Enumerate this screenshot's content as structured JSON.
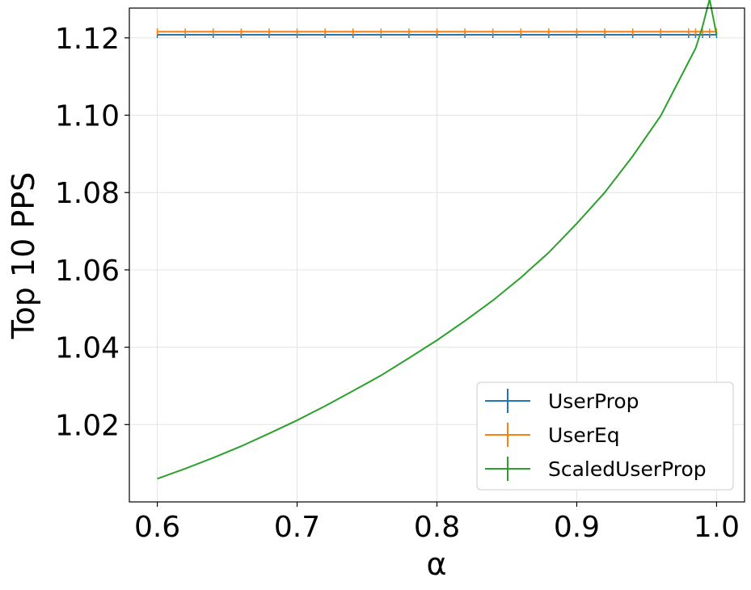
{
  "chart_data": {
    "type": "line",
    "title": "",
    "xlabel": "α",
    "ylabel": "Top 10 PPS",
    "xlim": [
      0.58,
      1.02
    ],
    "ylim": [
      1.0,
      1.1277
    ],
    "xticks": [
      0.6,
      0.7,
      0.8,
      0.9,
      1.0
    ],
    "xtick_labels": [
      "0.6",
      "0.7",
      "0.8",
      "0.9",
      "1.0"
    ],
    "yticks": [
      1.02,
      1.04,
      1.06,
      1.08,
      1.1,
      1.12
    ],
    "ytick_labels": [
      "1.02",
      "1.04",
      "1.06",
      "1.08",
      "1.10",
      "1.12"
    ],
    "grid": true,
    "legend_position": "bottom-right",
    "x": [
      0.6,
      0.62,
      0.64,
      0.66,
      0.68,
      0.7,
      0.72,
      0.74,
      0.76,
      0.78,
      0.8,
      0.82,
      0.84,
      0.86,
      0.88,
      0.9,
      0.92,
      0.94,
      0.96,
      0.98,
      0.985,
      0.99,
      0.995,
      1.0
    ],
    "series": [
      {
        "name": "UserProp",
        "color": "#1f77b4",
        "values": [
          1.1208,
          1.1208,
          1.1208,
          1.1208,
          1.1208,
          1.1208,
          1.1208,
          1.1208,
          1.1208,
          1.1208,
          1.1208,
          1.1208,
          1.1208,
          1.1208,
          1.1208,
          1.1208,
          1.1208,
          1.1208,
          1.1208,
          1.1208,
          1.1208,
          1.1208,
          1.1208,
          1.1208
        ]
      },
      {
        "name": "UserEq",
        "color": "#ff7f0e",
        "values": [
          1.1216,
          1.1216,
          1.1216,
          1.1216,
          1.1216,
          1.1216,
          1.1216,
          1.1216,
          1.1216,
          1.1216,
          1.1216,
          1.1216,
          1.1216,
          1.1216,
          1.1216,
          1.1216,
          1.1216,
          1.1216,
          1.1216,
          1.1216,
          1.1216,
          1.1216,
          1.1216,
          1.1216
        ]
      },
      {
        "name": "ScaledUserProp",
        "color": "#2ca02c",
        "values": [
          1.006,
          1.0086,
          1.0114,
          1.0144,
          1.0177,
          1.0211,
          1.0248,
          1.0287,
          1.0327,
          1.0372,
          1.0418,
          1.0468,
          1.0521,
          1.058,
          1.0645,
          1.072,
          1.08,
          1.0894,
          1.0998,
          1.1138,
          1.1173,
          1.123,
          1.13,
          1.1208
        ]
      }
    ]
  }
}
